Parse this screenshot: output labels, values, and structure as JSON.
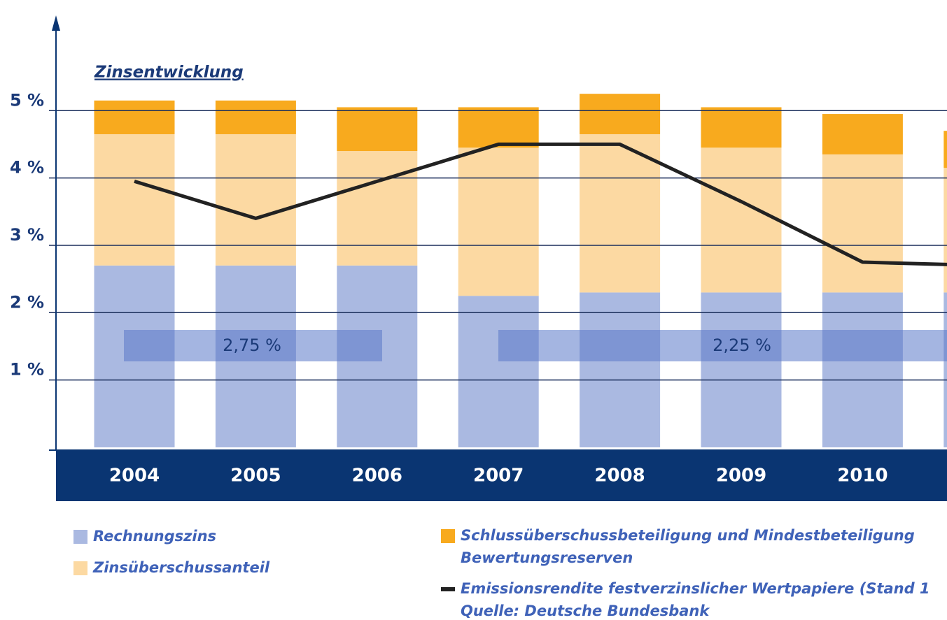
{
  "chart_data": {
    "type": "stacked-bar-line",
    "title": "Zinsentwicklung",
    "categories": [
      "2004",
      "2005",
      "2006",
      "2007",
      "2008",
      "2009",
      "2010",
      null
    ],
    "series": [
      {
        "name": "Rechnungszins",
        "color": "#aab9e1",
        "values": [
          2.7,
          2.7,
          2.7,
          2.25,
          2.3,
          2.3,
          2.3,
          2.3
        ]
      },
      {
        "name": "Zinsüberschussanteil",
        "color": "#fcd9a2",
        "values": [
          1.95,
          1.95,
          1.7,
          2.2,
          2.35,
          2.15,
          2.05,
          1.85
        ]
      },
      {
        "name": "Schlussüberschussbeteiligung und Mindestbeteiligung",
        "name_cont": "Bewertungsreserven",
        "color": "#f8aa1e",
        "values": [
          0.5,
          0.5,
          0.65,
          0.6,
          0.6,
          0.6,
          0.6,
          0.55
        ]
      },
      {
        "name": "Emissionsrendite festverzinslicher Wertpapiere (Stand 1",
        "source": "Quelle: Deutsche Bundesbank",
        "kind": "line",
        "color": "#222222",
        "values": [
          3.95,
          3.4,
          3.95,
          4.5,
          4.5,
          3.65,
          2.75,
          2.7
        ]
      }
    ],
    "annotations": [
      "2,75 %",
      "2,25 %"
    ],
    "ylim": [
      0,
      6.3
    ],
    "yticks": [
      {
        "value": 1,
        "label": "1 %"
      },
      {
        "value": 2,
        "label": "2 %"
      },
      {
        "value": 3,
        "label": "3 %"
      },
      {
        "value": 4,
        "label": "4 %"
      },
      {
        "value": 5,
        "label": "5 %"
      }
    ],
    "grid": true
  }
}
